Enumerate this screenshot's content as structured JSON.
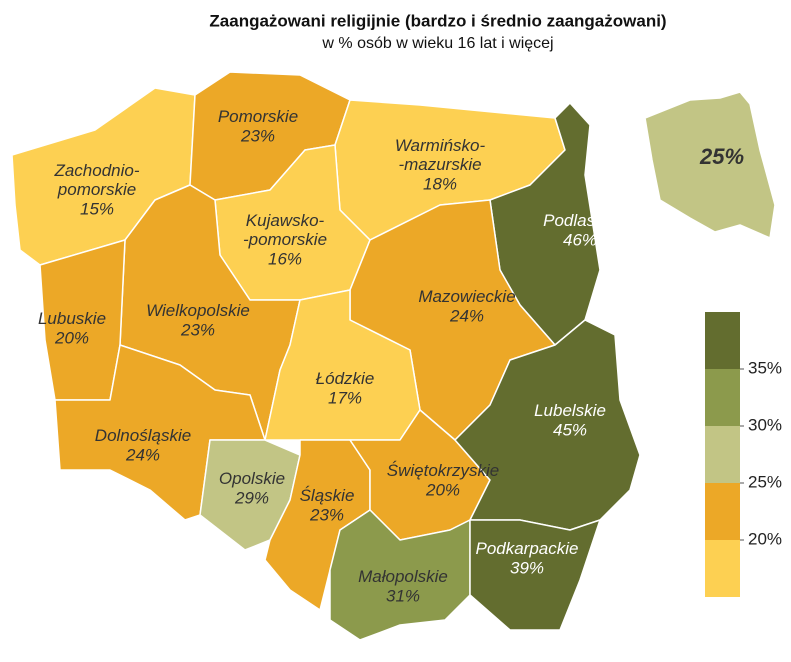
{
  "chart_data": {
    "type": "choropleth",
    "title": "Zaangażowani religijnie (bardzo i średnio zaangażowani)",
    "subtitle": "w % osób w wieku 16 lat i więcej",
    "categories": [
      "Zachodnio-\npomorskie",
      "Pomorskie",
      "Warmińsko-\n-mazurskie",
      "Podlaskie",
      "Kujawsko-\n-pomorskie",
      "Wielkopolskie",
      "Lubuskie",
      "Mazowieckie",
      "Łódzkie",
      "Dolnośląskie",
      "Opolskie",
      "Śląskie",
      "Świętokrzyskie",
      "Małopolskie",
      "Lubelskie",
      "Podkarpackie"
    ],
    "values": [
      15,
      23,
      18,
      46,
      16,
      23,
      20,
      24,
      17,
      24,
      29,
      23,
      20,
      31,
      45,
      39
    ],
    "value_labels": [
      "15%",
      "23%",
      "18%",
      "46%",
      "16%",
      "23%",
      "20%",
      "24%",
      "17%",
      "24%",
      "29%",
      "23%",
      "20%",
      "31%",
      "45%",
      "39%"
    ],
    "national": {
      "value": 25,
      "label": "25%"
    },
    "legend": {
      "thresholds": [
        {
          "value": 20,
          "label": "20%"
        },
        {
          "value": 25,
          "label": "25%"
        },
        {
          "value": 30,
          "label": "30%"
        },
        {
          "value": 35,
          "label": "35%"
        }
      ],
      "colors": [
        "#fdd052",
        "#eca827",
        "#c2c585",
        "#8c9a4c",
        "#636d2f"
      ]
    }
  }
}
